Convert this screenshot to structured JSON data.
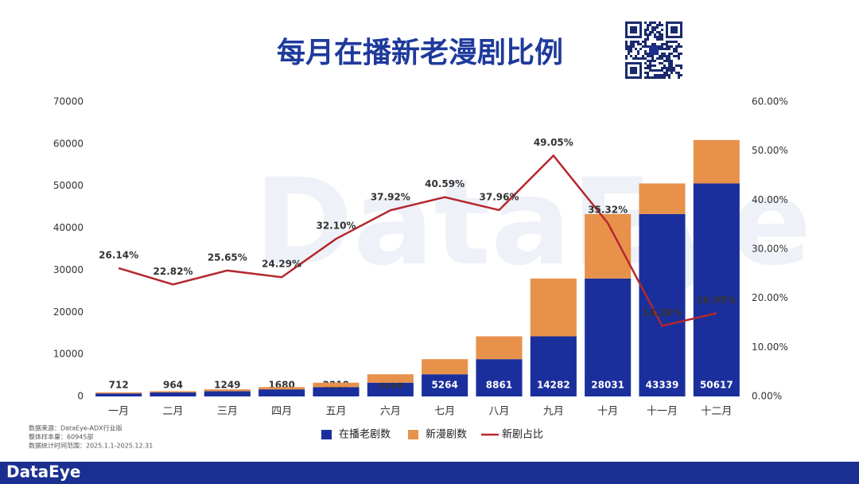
{
  "chart_data": {
    "type": "bar",
    "stacked": true,
    "title": "每月在播新老漫剧比例",
    "categories": [
      "一月",
      "二月",
      "三月",
      "四月",
      "五月",
      "六月",
      "七月",
      "八月",
      "九月",
      "十月",
      "十一月",
      "十二月"
    ],
    "series": [
      {
        "name": "在播老剧数",
        "color": "#1b2f9c",
        "values": [
          712,
          964,
          1249,
          1680,
          2219,
          3268,
          5264,
          8861,
          14282,
          28031,
          43339,
          50617
        ],
        "show_labels": true
      },
      {
        "name": "新漫剧数",
        "color": "#e8914b",
        "values": [
          252,
          285,
          431,
          539,
          1049,
          1996,
          3596,
          5422,
          13749,
          15307,
          7279,
          10331
        ]
      },
      {
        "name": "新剧占比",
        "color": "#b3282d",
        "type": "line",
        "axis": "y2",
        "values": [
          26.14,
          22.82,
          25.65,
          24.29,
          32.1,
          37.92,
          40.59,
          37.96,
          49.05,
          35.32,
          14.38,
          16.95
        ],
        "value_labels": [
          "26.14%",
          "22.82%",
          "25.65%",
          "24.29%",
          "32.10%",
          "37.92%",
          "40.59%",
          "37.96%",
          "49.05%",
          "35.32%",
          "14.38%",
          "16.95%"
        ]
      }
    ],
    "ylim": [
      0,
      70000
    ],
    "yticks": [
      0,
      10000,
      20000,
      30000,
      40000,
      50000,
      60000,
      70000
    ],
    "y2lim": [
      0,
      60
    ],
    "y2ticks": [
      {
        "value": 0,
        "label": "0.00%"
      },
      {
        "value": 10,
        "label": "10.00%"
      },
      {
        "value": 20,
        "label": "20.00%"
      },
      {
        "value": 30,
        "label": "30.00%"
      },
      {
        "value": 40,
        "label": "40.00%"
      },
      {
        "value": 50,
        "label": "50.00%"
      },
      {
        "value": 60,
        "label": "60.00%"
      }
    ],
    "legend": "bottom",
    "notes": [
      "数据来源：DataEye-ADX行业版",
      "整体样本量：60945部",
      "数据统计时间范围：2025.1.1-2025.12.31"
    ],
    "brand": "DataEye"
  }
}
